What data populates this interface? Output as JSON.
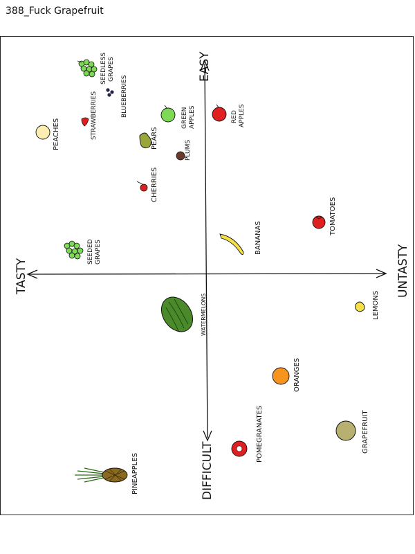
{
  "title": "388_Fuck Grapefruit",
  "axes": {
    "easy": "EASY",
    "difficult": "DIFFICULT",
    "tasty": "TASTY",
    "untasty": "UNTASTY"
  },
  "fruits": {
    "seedless_grapes": [
      "SEEDLESS",
      "GRAPES"
    ],
    "blueberries": "BLUEBERRIES",
    "strawberries": "STRAWBERRIES",
    "peaches": "PEACHES",
    "pears": "PEARS",
    "green_apples": [
      "GREEN",
      "APPLES"
    ],
    "plums": "PLUMS",
    "red_apples": [
      "RED",
      "APPLES"
    ],
    "cherries": "CHERRIES",
    "seeded_grapes": [
      "SEEDED",
      "GRAPES"
    ],
    "bananas": "BANANAS",
    "tomatoes": "TOMATOES",
    "watermelons": "WATERMELONS",
    "lemons": "LEMONS",
    "oranges": "ORANGES",
    "grapefruit": "GRAPEFRUIT",
    "pomegranates": "POMEGRANATES",
    "pineapples": "PINEAPPLES"
  },
  "colors": {
    "red": "#e02020",
    "green": "#7ed957",
    "yellow": "#f5e04a",
    "orange": "#f7941d",
    "peach": "#fbeeb0",
    "pear": "#9aa63a",
    "plum": "#6b3a2a",
    "grapefruit": "#b8b070",
    "watermelon": "#4a8a2a",
    "pineapple": "#8a6a20",
    "blueberry": "#23234a"
  }
}
